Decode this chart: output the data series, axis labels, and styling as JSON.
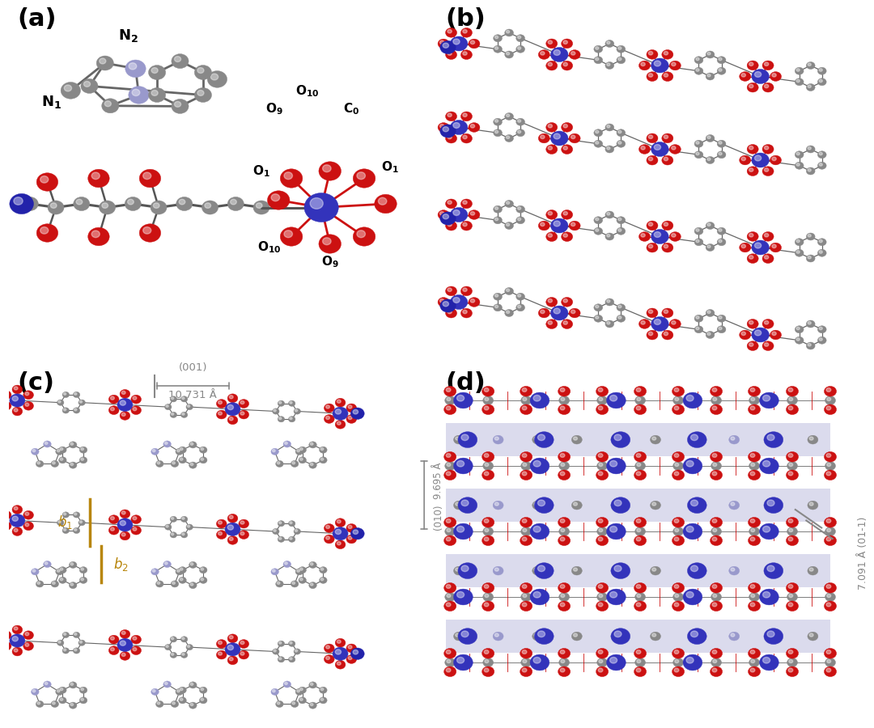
{
  "fig_width": 10.8,
  "fig_height": 9.0,
  "bg": "#ffffff",
  "C_COLOR": "#888888",
  "O_COLOR": "#cc1111",
  "Co_COLOR": "#3333bb",
  "N_light": "#9999cc",
  "N_dark": "#2222aa",
  "gold": "#b8860b",
  "gray_annot": "#888888",
  "panel_fontsize": 22,
  "panel_a_label_fontsize": 13,
  "annot_fontsize": 10,
  "panels": {
    "a": [
      0.01,
      0.5,
      0.49,
      0.5
    ],
    "b": [
      0.5,
      0.5,
      0.5,
      0.5
    ],
    "c": [
      0.01,
      0.0,
      0.49,
      0.5
    ],
    "d": [
      0.5,
      0.0,
      0.5,
      0.5
    ]
  }
}
